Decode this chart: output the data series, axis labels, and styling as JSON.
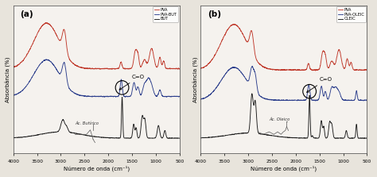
{
  "title_a": "(a)",
  "title_b": "(b)",
  "xlabel": "Número de onda (cm⁻¹)",
  "ylabel": "Absorbância (%)",
  "xmin": 500,
  "xmax": 4000,
  "xticks": [
    4000,
    3500,
    3000,
    2500,
    2000,
    1500,
    1000,
    500
  ],
  "legend_a": [
    "PVA",
    "PVA-BUT",
    "BUT"
  ],
  "legend_b": [
    "PVA",
    "PVA-OLEIC",
    "OLEIC"
  ],
  "color_pva": "#c0392b",
  "color_pvabut": "#2c3e8c",
  "color_but": "#1a1a1a",
  "color_pvaoleic": "#2c3e8c",
  "color_oleic": "#1a1a1a",
  "annotation_a": "Ác. Butírico",
  "annotation_b": "Ác. Oleico",
  "co_label": "C=O",
  "bg_color": "#e8e4dc",
  "panel_bg": "#f5f2ee"
}
